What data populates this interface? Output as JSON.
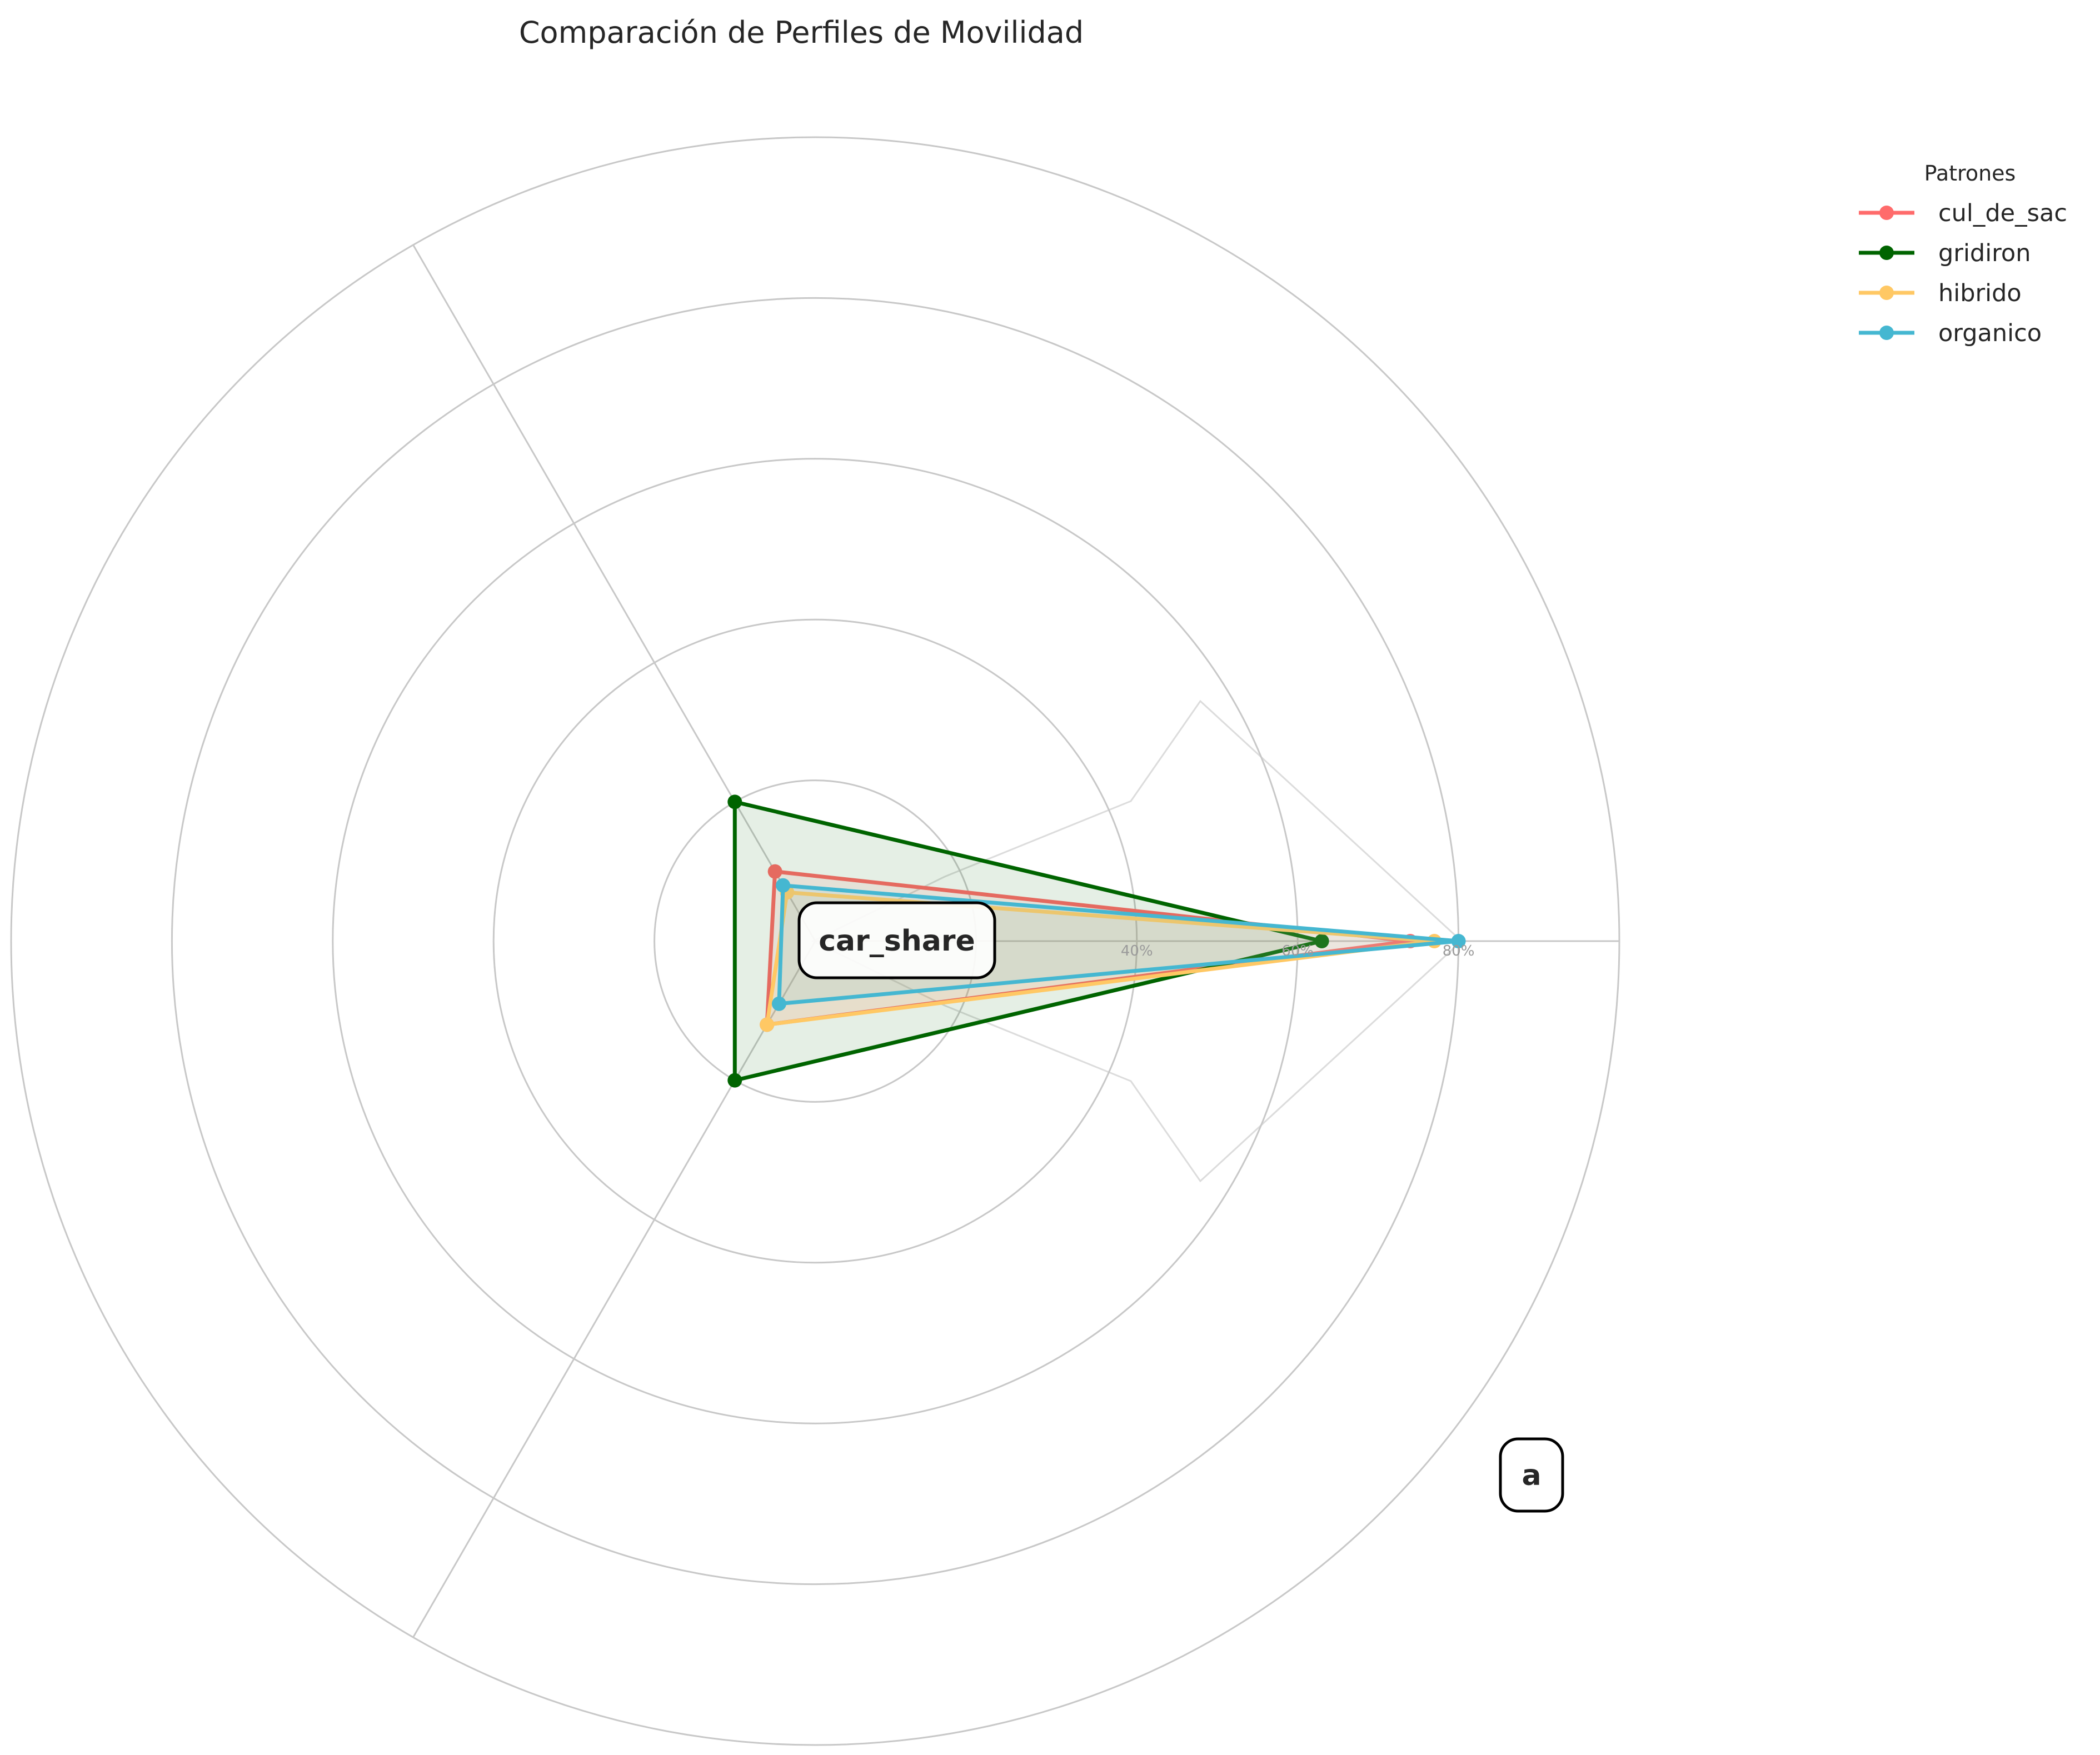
{
  "chart_data": {
    "type": "radar",
    "title": "Comparación de Perfiles de Movilidad",
    "axes": [
      "car_share",
      "",
      ""
    ],
    "radial_ticks": [
      {
        "value": 20,
        "label": ""
      },
      {
        "value": 40,
        "label": "40%"
      },
      {
        "value": 60,
        "label": "60%"
      },
      {
        "value": 80,
        "label": "80%"
      },
      {
        "value": 100,
        "label": ""
      }
    ],
    "rlim": [
      0,
      100
    ],
    "legend": {
      "title": "Patrones",
      "placement": "top-right"
    },
    "series": [
      {
        "name": "cul_de_sac",
        "color": "#FF6B6B",
        "values": [
          74,
          10,
          12
        ]
      },
      {
        "name": "gridiron",
        "color": "#006400",
        "values": [
          63,
          20,
          20
        ]
      },
      {
        "name": "hibrido",
        "color": "#FFC864",
        "values": [
          77,
          7,
          12
        ]
      },
      {
        "name": "organico",
        "color": "#45B7D1",
        "values": [
          80,
          8,
          9
        ]
      }
    ],
    "annotations": [
      "car_share",
      "a"
    ]
  }
}
